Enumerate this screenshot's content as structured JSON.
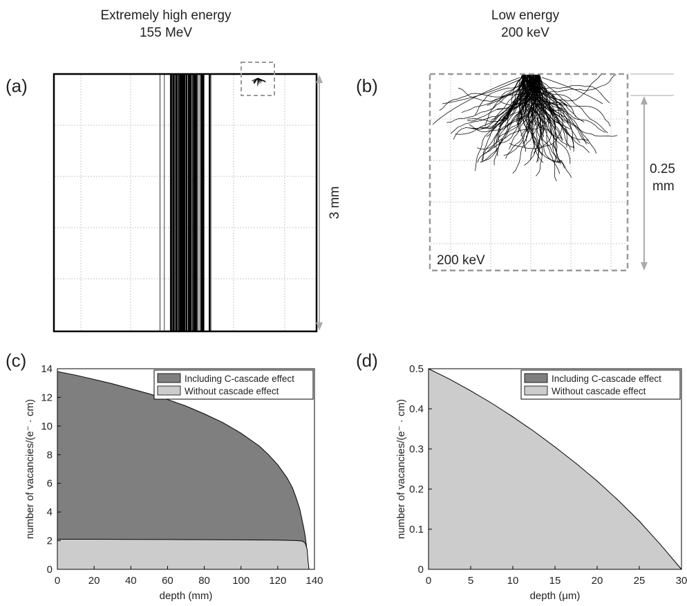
{
  "headers": {
    "left": [
      "Extremely high energy",
      "155 MeV"
    ],
    "right": [
      "Low energy",
      "200 keV"
    ]
  },
  "panel_labels": {
    "a": "(a)",
    "b": "(b)",
    "c": "(c)",
    "d": "(d)"
  },
  "panel_a": {
    "scale_label": "3 mm"
  },
  "panel_b": {
    "scale_label": [
      "0.25",
      "mm"
    ],
    "inset_label": "200 keV"
  },
  "colors": {
    "including": "#7f7f7f",
    "without": "#cccccc",
    "frame": "#000000",
    "grid": "#c8c8c8",
    "scale_arrow": "#aaaaaa",
    "dash_box": "#999999"
  },
  "chart_data": [
    {
      "panel": "c",
      "type": "area",
      "xlabel": "depth (mm)",
      "ylabel": "number of vacancies/(e⁻ · cm)",
      "xlim": [
        0,
        140
      ],
      "ylim": [
        0,
        14
      ],
      "xticks": [
        0,
        20,
        40,
        60,
        80,
        100,
        120,
        140
      ],
      "yticks": [
        0,
        2,
        4,
        6,
        8,
        10,
        12,
        14
      ],
      "legend": "top-right",
      "series": [
        {
          "name": "Including C-cascade effect",
          "x": [
            0,
            10,
            20,
            30,
            40,
            50,
            60,
            70,
            80,
            90,
            100,
            110,
            115,
            120,
            125,
            128,
            130,
            132,
            134,
            135,
            136,
            136.5,
            137
          ],
          "y": [
            13.8,
            13.55,
            13.25,
            12.95,
            12.6,
            12.25,
            11.85,
            11.4,
            10.85,
            10.25,
            9.5,
            8.6,
            8.0,
            7.3,
            6.4,
            5.7,
            5.0,
            4.2,
            3.0,
            2.3,
            1.2,
            0.4,
            0
          ]
        },
        {
          "name": "Without cascade effect",
          "x": [
            0,
            20,
            40,
            60,
            80,
            100,
            120,
            130,
            133,
            134,
            135,
            136,
            136.5,
            137
          ],
          "y": [
            2.1,
            2.1,
            2.09,
            2.08,
            2.07,
            2.06,
            2.04,
            2.01,
            1.98,
            1.93,
            1.82,
            1.4,
            0.6,
            0
          ]
        }
      ]
    },
    {
      "panel": "d",
      "type": "area",
      "xlabel": "depth (μm)",
      "ylabel": "number of vacancies/(e⁻ · cm)",
      "xlim": [
        0,
        30
      ],
      "ylim": [
        0,
        0.5
      ],
      "xticks": [
        0,
        5,
        10,
        15,
        20,
        25,
        30
      ],
      "yticks": [
        0,
        0.1,
        0.2,
        0.3,
        0.4,
        0.5
      ],
      "legend": "top-right",
      "series": [
        {
          "name": "Including C-cascade effect",
          "x": [
            0,
            5,
            10,
            15,
            20,
            25,
            30
          ],
          "y": [
            0.5,
            0.445,
            0.38,
            0.305,
            0.22,
            0.12,
            0
          ]
        },
        {
          "name": "Without cascade effect",
          "x": [
            0,
            2.5,
            5,
            7.5,
            10,
            12.5,
            15,
            17.5,
            20,
            22.5,
            25,
            27.5,
            30
          ],
          "y": [
            0.5,
            0.474,
            0.445,
            0.414,
            0.38,
            0.344,
            0.305,
            0.264,
            0.22,
            0.172,
            0.12,
            0.062,
            0
          ]
        }
      ]
    }
  ]
}
